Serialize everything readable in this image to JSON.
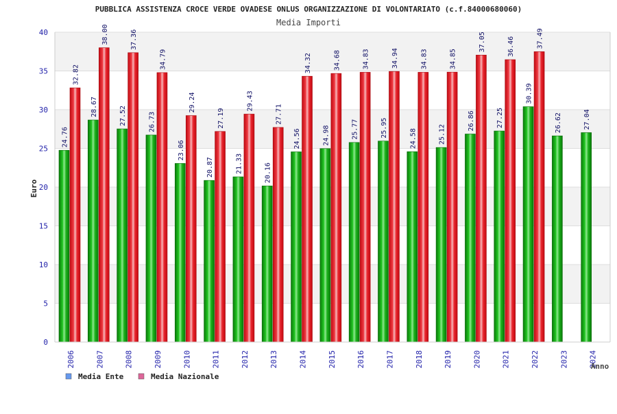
{
  "chart_data": {
    "type": "bar",
    "title": "PUBBLICA ASSISTENZA CROCE VERDE OVADESE ONLUS ORGANIZZAZIONE DI VOLONTARIATO (c.f.84000680060)",
    "subtitle": "Media Importi",
    "xlabel": "Anno",
    "ylabel": "Euro",
    "ylim": [
      0,
      40
    ],
    "yticks": [
      0,
      5,
      10,
      15,
      20,
      25,
      30,
      35,
      40
    ],
    "grid": true,
    "legend_position": "bottom-left",
    "categories": [
      "2006",
      "2007",
      "2008",
      "2009",
      "2010",
      "2011",
      "2012",
      "2013",
      "2014",
      "2015",
      "2016",
      "2017",
      "2018",
      "2019",
      "2020",
      "2021",
      "2022",
      "2023",
      "2024"
    ],
    "series": [
      {
        "name": "Media Ente",
        "color": "#11a511",
        "legend_color": "#6699ee",
        "values": [
          24.76,
          28.67,
          27.52,
          26.73,
          23.06,
          20.87,
          21.33,
          20.16,
          24.56,
          24.98,
          25.77,
          25.95,
          24.58,
          25.12,
          26.86,
          27.25,
          30.39,
          26.62,
          27.04
        ]
      },
      {
        "name": "Media Nazionale",
        "color": "#e81c24",
        "legend_color": "#dd6699",
        "values": [
          32.82,
          38.0,
          37.36,
          34.79,
          29.24,
          27.19,
          29.43,
          27.71,
          34.32,
          34.68,
          34.83,
          34.94,
          34.83,
          34.85,
          37.05,
          36.46,
          37.49,
          null,
          null
        ]
      }
    ]
  }
}
